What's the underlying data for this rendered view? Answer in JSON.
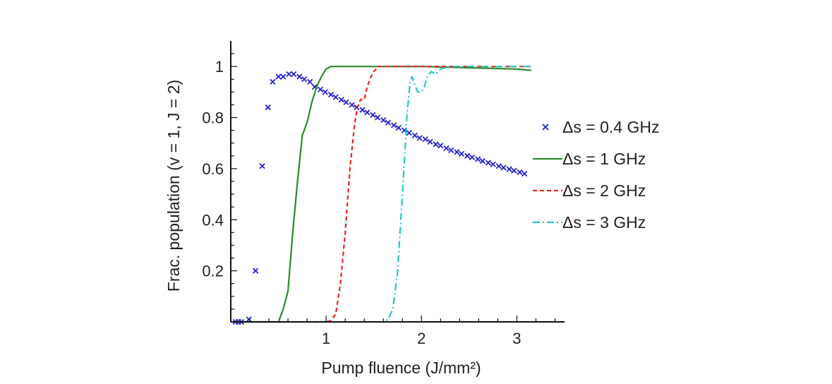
{
  "chart_data": {
    "type": "line",
    "xlabel": "Pump fluence (J/mm²)",
    "ylabel": "Frac. population (v = 1, J = 2)",
    "xlim": [
      0,
      3.5
    ],
    "ylim": [
      0,
      1.1
    ],
    "x_ticks": [
      {
        "value": 1,
        "label": "1"
      },
      {
        "value": 2,
        "label": "2"
      },
      {
        "value": 3,
        "label": "3"
      }
    ],
    "y_ticks": [
      {
        "value": 0.2,
        "label": "0.2"
      },
      {
        "value": 0.4,
        "label": "0.4"
      },
      {
        "value": 0.6,
        "label": "0.6"
      },
      {
        "value": 0.8,
        "label": "0.8"
      },
      {
        "value": 1.0,
        "label": "1"
      }
    ],
    "grid": false,
    "legend_position": "right",
    "series": [
      {
        "name": "Δs = 0.4 GHz",
        "style": "markers-x",
        "color": "#2222cc",
        "points": [
          [
            0.05,
            0.0
          ],
          [
            0.08,
            0.0
          ],
          [
            0.11,
            0.0
          ],
          [
            0.19,
            0.01
          ],
          [
            0.26,
            0.2
          ],
          [
            0.33,
            0.61
          ],
          [
            0.39,
            0.84
          ],
          [
            0.44,
            0.94
          ],
          [
            0.5,
            0.96
          ],
          [
            0.55,
            0.96
          ],
          [
            0.61,
            0.97
          ],
          [
            0.66,
            0.97
          ],
          [
            0.72,
            0.96
          ],
          [
            0.77,
            0.95
          ],
          [
            0.83,
            0.94
          ],
          [
            0.88,
            0.92
          ],
          [
            0.94,
            0.91
          ],
          [
            0.99,
            0.9
          ],
          [
            1.05,
            0.89
          ],
          [
            1.1,
            0.88
          ],
          [
            1.16,
            0.87
          ],
          [
            1.21,
            0.86
          ],
          [
            1.27,
            0.85
          ],
          [
            1.32,
            0.84
          ],
          [
            1.38,
            0.83
          ],
          [
            1.43,
            0.82
          ],
          [
            1.49,
            0.81
          ],
          [
            1.54,
            0.8
          ],
          [
            1.6,
            0.79
          ],
          [
            1.65,
            0.78
          ],
          [
            1.71,
            0.77
          ],
          [
            1.76,
            0.76
          ],
          [
            1.82,
            0.75
          ],
          [
            1.87,
            0.74
          ],
          [
            1.93,
            0.73
          ],
          [
            1.98,
            0.72
          ],
          [
            2.04,
            0.715
          ],
          [
            2.09,
            0.705
          ],
          [
            2.15,
            0.695
          ],
          [
            2.2,
            0.69
          ],
          [
            2.26,
            0.68
          ],
          [
            2.31,
            0.672
          ],
          [
            2.37,
            0.665
          ],
          [
            2.42,
            0.658
          ],
          [
            2.48,
            0.65
          ],
          [
            2.53,
            0.644
          ],
          [
            2.59,
            0.637
          ],
          [
            2.64,
            0.63
          ],
          [
            2.7,
            0.623
          ],
          [
            2.75,
            0.617
          ],
          [
            2.81,
            0.61
          ],
          [
            2.86,
            0.604
          ],
          [
            2.92,
            0.598
          ],
          [
            2.97,
            0.592
          ],
          [
            3.03,
            0.586
          ],
          [
            3.08,
            0.58
          ]
        ]
      },
      {
        "name": "Δs = 1 GHz",
        "style": "solid",
        "color": "#2a8a2a",
        "points": [
          [
            0.05,
            0.0
          ],
          [
            0.5,
            0.0
          ],
          [
            0.55,
            0.05
          ],
          [
            0.6,
            0.12
          ],
          [
            0.65,
            0.35
          ],
          [
            0.7,
            0.55
          ],
          [
            0.75,
            0.73
          ],
          [
            0.8,
            0.78
          ],
          [
            0.85,
            0.86
          ],
          [
            0.9,
            0.92
          ],
          [
            0.95,
            0.96
          ],
          [
            1.0,
            0.99
          ],
          [
            1.05,
            1.0
          ],
          [
            1.2,
            1.0
          ],
          [
            2.0,
            1.0
          ],
          [
            2.5,
            0.995
          ],
          [
            3.0,
            0.99
          ],
          [
            3.15,
            0.985
          ]
        ]
      },
      {
        "name": "Δs = 2 GHz",
        "style": "dashed",
        "color": "#ee2222",
        "points": [
          [
            0.05,
            0.0
          ],
          [
            1.0,
            0.0
          ],
          [
            1.05,
            0.005
          ],
          [
            1.1,
            0.03
          ],
          [
            1.15,
            0.15
          ],
          [
            1.2,
            0.35
          ],
          [
            1.25,
            0.6
          ],
          [
            1.3,
            0.78
          ],
          [
            1.33,
            0.84
          ],
          [
            1.36,
            0.87
          ],
          [
            1.4,
            0.87
          ],
          [
            1.43,
            0.92
          ],
          [
            1.47,
            0.96
          ],
          [
            1.5,
            0.98
          ],
          [
            1.55,
            1.0
          ],
          [
            2.0,
            1.0
          ],
          [
            3.15,
            1.0
          ]
        ]
      },
      {
        "name": "Δs = 3 GHz",
        "style": "dashdot",
        "color": "#22c8c8",
        "points": [
          [
            0.05,
            0.0
          ],
          [
            1.6,
            0.0
          ],
          [
            1.65,
            0.01
          ],
          [
            1.7,
            0.05
          ],
          [
            1.75,
            0.2
          ],
          [
            1.8,
            0.5
          ],
          [
            1.85,
            0.82
          ],
          [
            1.88,
            0.94
          ],
          [
            1.9,
            0.96
          ],
          [
            1.93,
            0.93
          ],
          [
            1.96,
            0.9
          ],
          [
            2.0,
            0.9
          ],
          [
            2.03,
            0.92
          ],
          [
            2.06,
            0.96
          ],
          [
            2.1,
            0.98
          ],
          [
            2.15,
            0.97
          ],
          [
            2.2,
            0.99
          ],
          [
            2.3,
            1.0
          ],
          [
            3.15,
            1.0
          ]
        ]
      }
    ]
  }
}
